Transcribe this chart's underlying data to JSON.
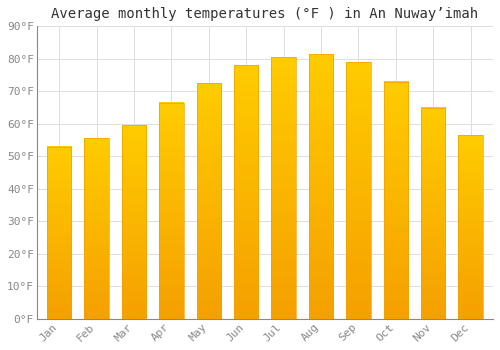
{
  "title": "Average monthly temperatures (°F ) in An Nuwayʼimah",
  "months": [
    "Jan",
    "Feb",
    "Mar",
    "Apr",
    "May",
    "Jun",
    "Jul",
    "Aug",
    "Sep",
    "Oct",
    "Nov",
    "Dec"
  ],
  "values": [
    53,
    55.5,
    59.5,
    66.5,
    72.5,
    78,
    80.5,
    81.5,
    79,
    73,
    65,
    56.5
  ],
  "bar_color_top": "#FFCC00",
  "bar_color_bottom": "#F5A000",
  "background_color": "#FFFFFF",
  "grid_color": "#DDDDDD",
  "ylim": [
    0,
    90
  ],
  "yticks": [
    0,
    10,
    20,
    30,
    40,
    50,
    60,
    70,
    80,
    90
  ],
  "ytick_labels": [
    "0°F",
    "10°F",
    "20°F",
    "30°F",
    "40°F",
    "50°F",
    "60°F",
    "70°F",
    "80°F",
    "90°F"
  ],
  "title_fontsize": 10,
  "tick_fontsize": 8,
  "tick_color": "#888888",
  "title_color": "#333333"
}
